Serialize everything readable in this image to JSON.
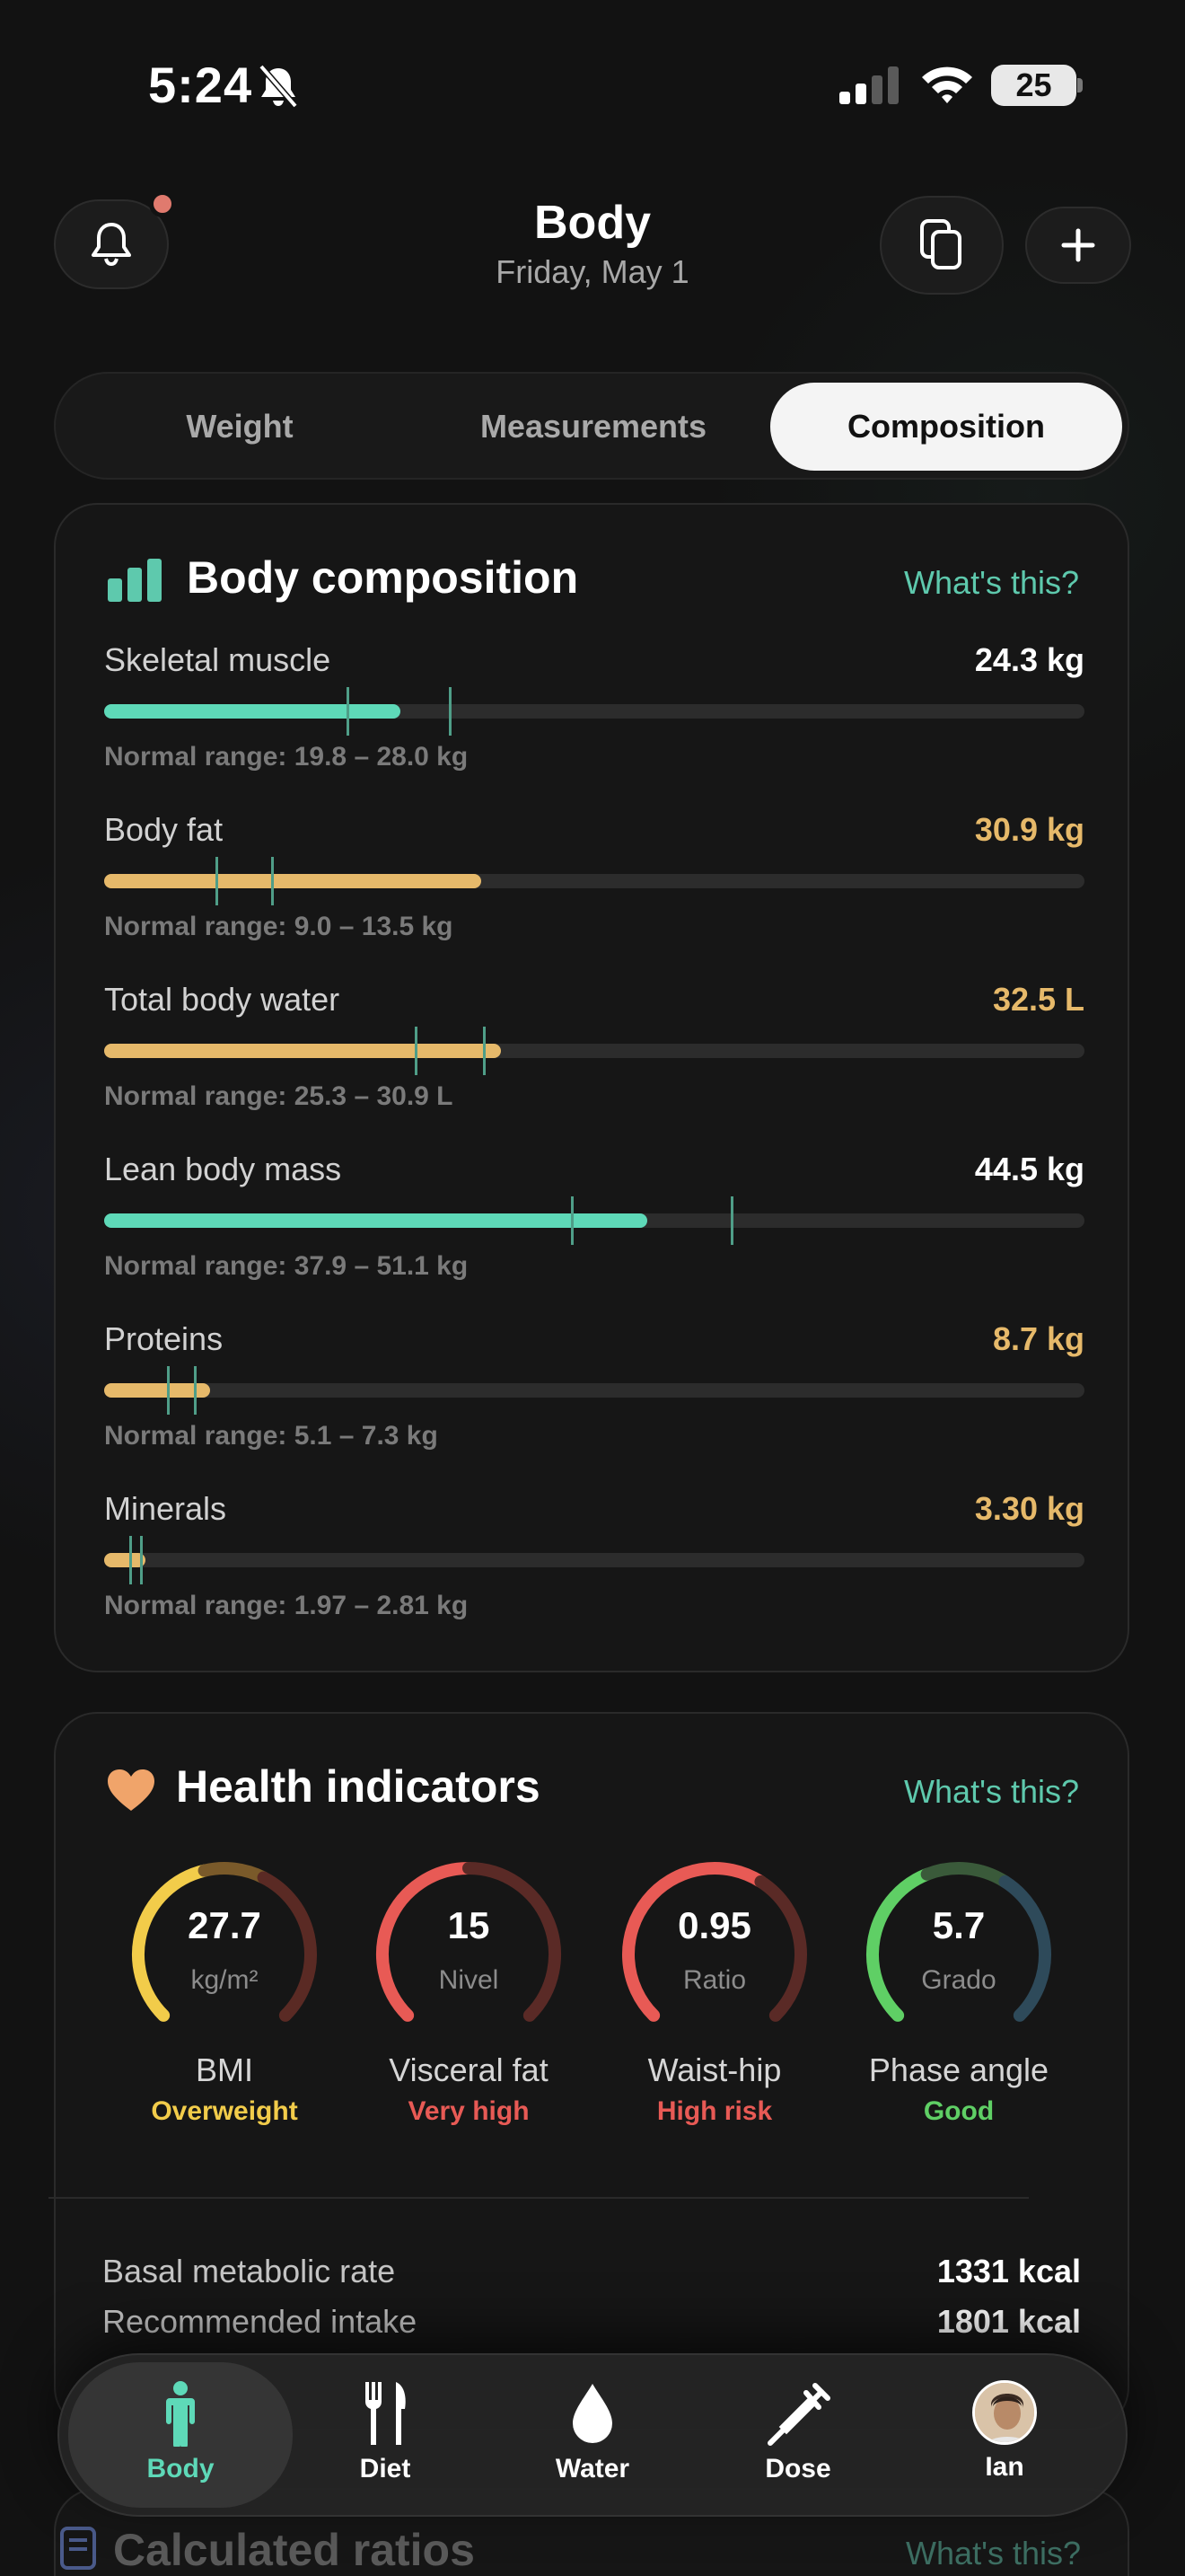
{
  "status_bar": {
    "time": "5:24",
    "battery": "25"
  },
  "header": {
    "title": "Body",
    "subtitle": "Friday, May 1"
  },
  "tabs": [
    {
      "label": "Weight"
    },
    {
      "label": "Measurements"
    },
    {
      "label": "Composition",
      "selected": true
    }
  ],
  "composition": {
    "title": "Body composition",
    "whats_this": "What's this?",
    "metrics": [
      {
        "label": "Skeletal muscle",
        "value": "24.3 kg",
        "range": "Normal range: 19.8 – 28.0 kg",
        "status_color": "#5ed9b8",
        "value_color": "#ffffff"
      },
      {
        "label": "Body fat",
        "value": "30.9 kg",
        "range": "Normal range: 9.0 – 13.5 kg",
        "status_color": "#e6b96a",
        "value_color": "#e6b96a"
      },
      {
        "label": "Total body water",
        "value": "32.5 L",
        "range": "Normal range: 25.3 – 30.9 L",
        "status_color": "#e6b96a",
        "value_color": "#e6b96a"
      },
      {
        "label": "Lean body mass",
        "value": "44.5 kg",
        "range": "Normal range: 37.9 – 51.1 kg",
        "status_color": "#5ed9b8",
        "value_color": "#ffffff"
      },
      {
        "label": "Proteins",
        "value": "8.7 kg",
        "range": "Normal range: 5.1 – 7.3 kg",
        "status_color": "#e6b96a",
        "value_color": "#e6b96a"
      },
      {
        "label": "Minerals",
        "value": "3.30 kg",
        "range": "Normal range: 1.97 – 2.81 kg",
        "status_color": "#e6b96a",
        "value_color": "#e6b96a"
      }
    ]
  },
  "health": {
    "title": "Health indicators",
    "whats_this": "What's this?",
    "gauges": [
      {
        "value": "27.7",
        "unit": "kg/m²",
        "name": "BMI",
        "status": "Overweight",
        "status_color": "#f2cc4a"
      },
      {
        "value": "15",
        "unit": "Nivel",
        "name": "Visceral fat",
        "status": "Very high",
        "status_color": "#e85a55"
      },
      {
        "value": "0.95",
        "unit": "Ratio",
        "name": "Waist-hip",
        "status": "High risk",
        "status_color": "#e85a55"
      },
      {
        "value": "5.7",
        "unit": "Grado",
        "name": "Phase angle",
        "status": "Good",
        "status_color": "#5fcf65"
      }
    ],
    "rows": [
      {
        "label": "Basal metabolic rate",
        "value": "1331 kcal"
      },
      {
        "label": "Recommended intake",
        "value": "1801 kcal"
      }
    ]
  },
  "next_card": {
    "title": "Calculated ratios",
    "whats_this": "What's this?"
  },
  "tabbar": [
    {
      "label": "Body",
      "icon": "person-icon",
      "active": true
    },
    {
      "label": "Diet",
      "icon": "fork-knife-icon"
    },
    {
      "label": "Water",
      "icon": "water-drop-icon"
    },
    {
      "label": "Dose",
      "icon": "syringe-icon"
    },
    {
      "label": "Ian",
      "icon": "avatar"
    }
  ]
}
